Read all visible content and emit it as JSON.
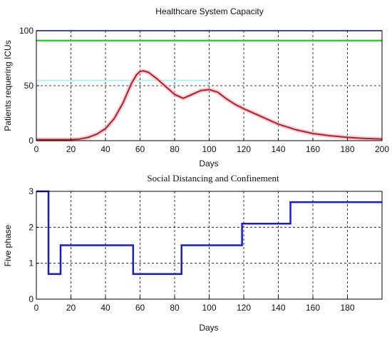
{
  "chart_data": [
    {
      "type": "line",
      "title": "Healthcare System Capacity",
      "xlabel": "Days",
      "ylabel": "Patients requering ICUs",
      "xlim": [
        0,
        200
      ],
      "ylim": [
        0,
        100
      ],
      "xticks": [
        0,
        20,
        40,
        60,
        80,
        100,
        120,
        140,
        160,
        180,
        200
      ],
      "yticks": [
        0,
        50,
        100
      ],
      "grid": true,
      "colors": {
        "capacity_top": "#1f3fcf",
        "capacity": "#33cc33",
        "curve": "#b22222",
        "cyan": "#44dddd",
        "pink": "#f3b6c8"
      },
      "series": [
        {
          "style": "curve",
          "x": [
            0,
            10,
            20,
            25,
            30,
            35,
            40,
            45,
            50,
            55,
            58,
            60,
            62,
            65,
            70,
            75,
            80,
            85,
            90,
            95,
            100,
            105,
            110,
            115,
            120,
            130,
            140,
            150,
            160,
            170,
            180,
            190,
            200
          ],
          "y": [
            1,
            1,
            1,
            1.5,
            3,
            6,
            11,
            20,
            34,
            52,
            60,
            63,
            63.5,
            62,
            56,
            49,
            42,
            38.5,
            42,
            45.5,
            46.5,
            44,
            38,
            33,
            29,
            22,
            15,
            10,
            6.5,
            4.5,
            3,
            2,
            1.5
          ]
        },
        {
          "style": "hline",
          "x": [
            0,
            200
          ],
          "y": [
            100,
            100
          ]
        },
        {
          "style": "hline",
          "x": [
            0,
            200
          ],
          "y": [
            91,
            91
          ]
        }
      ]
    },
    {
      "type": "line",
      "title": "Social Distancing and Confinement",
      "xlabel": "Days",
      "ylabel": "Five phase",
      "xlim": [
        0,
        200
      ],
      "ylim": [
        0,
        3
      ],
      "xticks": [
        0,
        20,
        40,
        60,
        80,
        100,
        120,
        140,
        160,
        180
      ],
      "yticks": [
        0,
        1,
        2,
        3
      ],
      "grid": true,
      "colors": {
        "line": "#1a1acf"
      },
      "series": [
        {
          "style": "step",
          "x": [
            0,
            7,
            7,
            14,
            14,
            56,
            56,
            84,
            84,
            119,
            119,
            147,
            147,
            200
          ],
          "y": [
            3,
            3,
            0.7,
            0.7,
            1.5,
            1.5,
            0.7,
            0.7,
            1.5,
            1.5,
            2.1,
            2.1,
            2.7,
            2.7
          ]
        }
      ]
    }
  ]
}
